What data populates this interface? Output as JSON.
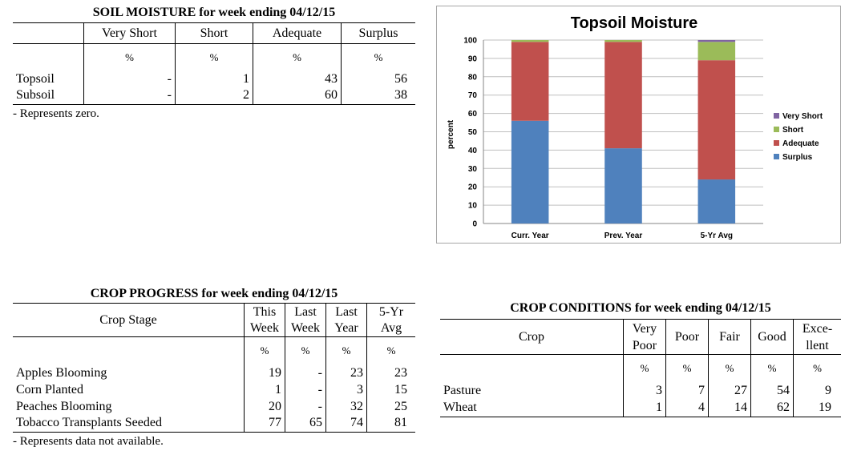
{
  "soil_moisture": {
    "title": "SOIL MOISTURE for week ending 04/12/15",
    "columns": [
      "Very Short",
      "Short",
      "Adequate",
      "Surplus"
    ],
    "units": [
      "%",
      "%",
      "%",
      "%"
    ],
    "rows": [
      {
        "label": "Topsoil",
        "values": [
          "-",
          "1",
          "43",
          "56"
        ]
      },
      {
        "label": "Subsoil",
        "values": [
          "-",
          "2",
          "60",
          "38"
        ]
      }
    ],
    "note": "- Represents zero."
  },
  "crop_progress": {
    "title": "CROP PROGRESS for week ending 04/12/15",
    "stage_header": "Crop Stage",
    "columns": [
      {
        "line1": "This",
        "line2": "Week"
      },
      {
        "line1": "Last",
        "line2": "Week"
      },
      {
        "line1": "Last",
        "line2": "Year"
      },
      {
        "line1": "5-Yr",
        "line2": "Avg"
      }
    ],
    "units": [
      "%",
      "%",
      "%",
      "%"
    ],
    "rows": [
      {
        "label": "Apples Blooming",
        "values": [
          "19",
          "-",
          "23",
          "23"
        ]
      },
      {
        "label": "Corn Planted",
        "values": [
          "1",
          "-",
          "3",
          "15"
        ]
      },
      {
        "label": "Peaches Blooming",
        "values": [
          "20",
          "-",
          "32",
          "25"
        ]
      },
      {
        "label": "Tobacco Transplants Seeded",
        "values": [
          "77",
          "65",
          "74",
          "81"
        ]
      }
    ],
    "note": "- Represents data not available."
  },
  "crop_conditions": {
    "title": "CROP CONDITIONS for week ending 04/12/15",
    "crop_header": "Crop",
    "columns": [
      {
        "line1": "Very",
        "line2": "Poor"
      },
      {
        "line1": "Poor",
        "line2": ""
      },
      {
        "line1": "Fair",
        "line2": ""
      },
      {
        "line1": "Good",
        "line2": ""
      },
      {
        "line1": "Exce-",
        "line2": "llent"
      }
    ],
    "units": [
      "%",
      "%",
      "%",
      "%",
      "%"
    ],
    "rows": [
      {
        "label": "Pasture",
        "values": [
          "3",
          "7",
          "27",
          "54",
          "9"
        ]
      },
      {
        "label": "Wheat",
        "values": [
          "1",
          "4",
          "14",
          "62",
          "19"
        ]
      }
    ]
  },
  "chart_data": {
    "type": "bar",
    "stacked": true,
    "title": "Topsoil Moisture",
    "ylabel": "percent",
    "xlabel": "",
    "ylim": [
      0,
      100
    ],
    "ytick_step": 10,
    "categories": [
      "Curr. Year",
      "Prev. Year",
      "5-Yr Avg"
    ],
    "series": [
      {
        "name": "Surplus",
        "color": "#4f81bd",
        "values": [
          56,
          41,
          24
        ]
      },
      {
        "name": "Adequate",
        "color": "#c0504d",
        "values": [
          43,
          58,
          65
        ]
      },
      {
        "name": "Short",
        "color": "#9bbb59",
        "values": [
          1,
          1,
          10
        ]
      },
      {
        "name": "Very Short",
        "color": "#8064a2",
        "values": [
          0,
          0,
          1
        ]
      }
    ],
    "legend_order": [
      "Very Short",
      "Short",
      "Adequate",
      "Surplus"
    ],
    "legend_position": "right",
    "grid": true,
    "grid_color": "#bfbfbf"
  }
}
